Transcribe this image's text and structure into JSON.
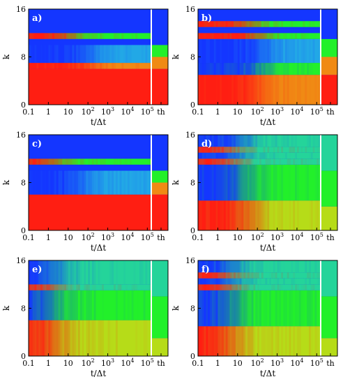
{
  "chart_data": [
    {
      "panel": "a)",
      "type": "heatmap",
      "xlabel": "t/Δt",
      "ylabel": "k",
      "x_tick_labels": [
        {
          "label": "0.1",
          "exp": null,
          "pos": -1
        },
        {
          "label": "1",
          "exp": null,
          "pos": 0
        },
        {
          "label": "10",
          "exp": null,
          "pos": 1
        },
        {
          "label": "10",
          "exp": "2",
          "pos": 2
        },
        {
          "label": "10",
          "exp": "3",
          "pos": 3
        },
        {
          "label": "10",
          "exp": "4",
          "pos": 4
        },
        {
          "label": "10",
          "exp": "5",
          "pos": 5
        },
        {
          "label": "th",
          "exp": null,
          "pos": "th"
        }
      ],
      "y_tick_labels": [
        "0",
        "8",
        "16"
      ],
      "ylim": [
        0,
        16
      ],
      "rows": [
        {
          "k": [
            0,
            6
          ],
          "profile": "red",
          "t_change": 99,
          "to": "red"
        },
        {
          "k": [
            6,
            7
          ],
          "profile": "red",
          "t_change": 2.5,
          "to": "orange"
        },
        {
          "k": [
            7,
            10
          ],
          "profile": "blue",
          "t_change": 2.5,
          "to": "cyan"
        },
        {
          "k": [
            10,
            11
          ],
          "profile": "blue",
          "t_change": 99,
          "to": "blue"
        },
        {
          "k": [
            11,
            12
          ],
          "profile": "red",
          "t_change": 1.5,
          "to": "green"
        },
        {
          "k": [
            12,
            16
          ],
          "profile": "blue",
          "t_change": 99,
          "to": "blue"
        }
      ],
      "equilibrium": [
        {
          "k": [
            0,
            6
          ],
          "color": "red"
        },
        {
          "k": [
            6,
            8
          ],
          "color": "orange"
        },
        {
          "k": [
            8,
            10
          ],
          "color": "green"
        },
        {
          "k": [
            10,
            16
          ],
          "color": "blue"
        }
      ]
    },
    {
      "panel": "b)",
      "type": "heatmap",
      "xlabel": "t/Δt",
      "ylabel": "k",
      "x_tick_labels": [
        {
          "label": "0.1",
          "exp": null,
          "pos": -1
        },
        {
          "label": "1",
          "exp": null,
          "pos": 0
        },
        {
          "label": "10",
          "exp": null,
          "pos": 1
        },
        {
          "label": "10",
          "exp": "2",
          "pos": 2
        },
        {
          "label": "10",
          "exp": "3",
          "pos": 3
        },
        {
          "label": "10",
          "exp": "4",
          "pos": 4
        },
        {
          "label": "10",
          "exp": "5",
          "pos": 5
        },
        {
          "label": "th",
          "exp": null,
          "pos": "th"
        }
      ],
      "y_tick_labels": [
        "0",
        "8",
        "16"
      ],
      "ylim": [
        0,
        16
      ],
      "rows": [
        {
          "k": [
            0,
            5
          ],
          "profile": "red",
          "t_change": 2.5,
          "to": "orange"
        },
        {
          "k": [
            5,
            7
          ],
          "profile": "blue",
          "t_change": 2.5,
          "to": "green"
        },
        {
          "k": [
            7,
            11
          ],
          "profile": "blue",
          "t_change": 2.8,
          "to": "cyan"
        },
        {
          "k": [
            11,
            12
          ],
          "profile": "red",
          "t_change": 2.5,
          "to": "green"
        },
        {
          "k": [
            12,
            13
          ],
          "profile": "blue",
          "t_change": 99,
          "to": "blue"
        },
        {
          "k": [
            13,
            14
          ],
          "profile": "red",
          "t_change": 2.0,
          "to": "green"
        },
        {
          "k": [
            14,
            16
          ],
          "profile": "blue",
          "t_change": 99,
          "to": "blue"
        }
      ],
      "equilibrium": [
        {
          "k": [
            0,
            5
          ],
          "color": "red"
        },
        {
          "k": [
            5,
            8
          ],
          "color": "orange"
        },
        {
          "k": [
            8,
            11
          ],
          "color": "green"
        },
        {
          "k": [
            11,
            16
          ],
          "color": "blue"
        }
      ]
    },
    {
      "panel": "c)",
      "type": "heatmap",
      "xlabel": "t/Δt",
      "ylabel": "k",
      "x_tick_labels": [
        {
          "label": "0.1",
          "exp": null,
          "pos": -1
        },
        {
          "label": "1",
          "exp": null,
          "pos": 0
        },
        {
          "label": "10",
          "exp": null,
          "pos": 1
        },
        {
          "label": "10",
          "exp": "2",
          "pos": 2
        },
        {
          "label": "10",
          "exp": "3",
          "pos": 3
        },
        {
          "label": "10",
          "exp": "4",
          "pos": 4
        },
        {
          "label": "10",
          "exp": "5",
          "pos": 5
        },
        {
          "label": "th",
          "exp": null,
          "pos": "th"
        }
      ],
      "y_tick_labels": [
        "0",
        "8",
        "16"
      ],
      "ylim": [
        0,
        16
      ],
      "rows": [
        {
          "k": [
            0,
            6
          ],
          "profile": "red",
          "t_change": 99,
          "to": "red"
        },
        {
          "k": [
            6,
            10
          ],
          "profile": "blue",
          "t_change": 2.0,
          "to": "cyan"
        },
        {
          "k": [
            10,
            11
          ],
          "profile": "blue",
          "t_change": 99,
          "to": "blue"
        },
        {
          "k": [
            11,
            12
          ],
          "profile": "red",
          "t_change": 0.6,
          "to": "green"
        },
        {
          "k": [
            12,
            16
          ],
          "profile": "blue",
          "t_change": 99,
          "to": "blue"
        }
      ],
      "equilibrium": [
        {
          "k": [
            0,
            6
          ],
          "color": "red"
        },
        {
          "k": [
            6,
            8
          ],
          "color": "orange"
        },
        {
          "k": [
            8,
            10
          ],
          "color": "green"
        },
        {
          "k": [
            10,
            16
          ],
          "color": "blue"
        }
      ]
    },
    {
      "panel": "d)",
      "type": "heatmap",
      "xlabel": "t/Δt",
      "ylabel": "k",
      "x_tick_labels": [
        {
          "label": "0.1",
          "exp": null,
          "pos": -1
        },
        {
          "label": "1",
          "exp": null,
          "pos": 0
        },
        {
          "label": "10",
          "exp": null,
          "pos": 1
        },
        {
          "label": "10",
          "exp": "2",
          "pos": 2
        },
        {
          "label": "10",
          "exp": "3",
          "pos": 3
        },
        {
          "label": "10",
          "exp": "4",
          "pos": 4
        },
        {
          "label": "10",
          "exp": "5",
          "pos": 5
        },
        {
          "label": "th",
          "exp": null,
          "pos": "th"
        }
      ],
      "y_tick_labels": [
        "0",
        "8",
        "16"
      ],
      "ylim": [
        0,
        16
      ],
      "rows": [
        {
          "k": [
            0,
            5
          ],
          "profile": "red",
          "t_change": 2.0,
          "to": "yellow"
        },
        {
          "k": [
            5,
            11
          ],
          "profile": "blue",
          "t_change": 1.6,
          "to": "green"
        },
        {
          "k": [
            11,
            12
          ],
          "profile": "red",
          "t_change": 1.0,
          "to": "teal"
        },
        {
          "k": [
            12,
            13
          ],
          "profile": "blue",
          "t_change": 1.3,
          "to": "teal"
        },
        {
          "k": [
            13,
            14
          ],
          "profile": "red",
          "t_change": 1.0,
          "to": "teal"
        },
        {
          "k": [
            14,
            16
          ],
          "profile": "blue",
          "t_change": 1.6,
          "to": "teal"
        }
      ],
      "equilibrium": [
        {
          "k": [
            0,
            4
          ],
          "color": "yellow"
        },
        {
          "k": [
            4,
            10
          ],
          "color": "green"
        },
        {
          "k": [
            10,
            16
          ],
          "color": "teal"
        }
      ]
    },
    {
      "panel": "e)",
      "type": "heatmap",
      "xlabel": "t/Δt",
      "ylabel": "k",
      "x_tick_labels": [
        {
          "label": "0.1",
          "exp": null,
          "pos": -1
        },
        {
          "label": "1",
          "exp": null,
          "pos": 0
        },
        {
          "label": "10",
          "exp": null,
          "pos": 1
        },
        {
          "label": "10",
          "exp": "2",
          "pos": 2
        },
        {
          "label": "10",
          "exp": "3",
          "pos": 3
        },
        {
          "label": "10",
          "exp": "4",
          "pos": 4
        },
        {
          "label": "10",
          "exp": "5",
          "pos": 5
        },
        {
          "label": "th",
          "exp": null,
          "pos": "th"
        }
      ],
      "y_tick_labels": [
        "0",
        "8",
        "16"
      ],
      "ylim": [
        0,
        16
      ],
      "rows": [
        {
          "k": [
            0,
            6
          ],
          "profile": "red",
          "t_change": 0.6,
          "to": "yellow"
        },
        {
          "k": [
            6,
            11
          ],
          "profile": "blue",
          "t_change": 0.3,
          "to": "green"
        },
        {
          "k": [
            11,
            12
          ],
          "profile": "red",
          "t_change": 0.4,
          "to": "teal"
        },
        {
          "k": [
            12,
            16
          ],
          "profile": "blue",
          "t_change": 0.6,
          "to": "teal"
        }
      ],
      "equilibrium": [
        {
          "k": [
            0,
            3
          ],
          "color": "yellow"
        },
        {
          "k": [
            3,
            10
          ],
          "color": "green"
        },
        {
          "k": [
            10,
            16
          ],
          "color": "teal"
        }
      ]
    },
    {
      "panel": "f)",
      "type": "heatmap",
      "xlabel": "t/Δt",
      "ylabel": "k",
      "x_tick_labels": [
        {
          "label": "0.1",
          "exp": null,
          "pos": -1
        },
        {
          "label": "1",
          "exp": null,
          "pos": 0
        },
        {
          "label": "10",
          "exp": null,
          "pos": 1
        },
        {
          "label": "10",
          "exp": "2",
          "pos": 2
        },
        {
          "label": "10",
          "exp": "3",
          "pos": 3
        },
        {
          "label": "10",
          "exp": "4",
          "pos": 4
        },
        {
          "label": "10",
          "exp": "5",
          "pos": 5
        },
        {
          "label": "th",
          "exp": null,
          "pos": "th"
        }
      ],
      "y_tick_labels": [
        "0",
        "8",
        "16"
      ],
      "ylim": [
        0,
        16
      ],
      "rows": [
        {
          "k": [
            0,
            5
          ],
          "profile": "red",
          "t_change": 1.0,
          "to": "yellow"
        },
        {
          "k": [
            5,
            11
          ],
          "profile": "blue",
          "t_change": 1.0,
          "to": "green"
        },
        {
          "k": [
            11,
            12
          ],
          "profile": "red",
          "t_change": 0.9,
          "to": "teal"
        },
        {
          "k": [
            12,
            13
          ],
          "profile": "blue",
          "t_change": 1.0,
          "to": "teal"
        },
        {
          "k": [
            13,
            14
          ],
          "profile": "red",
          "t_change": 0.9,
          "to": "teal"
        },
        {
          "k": [
            14,
            16
          ],
          "profile": "blue",
          "t_change": 1.0,
          "to": "teal"
        }
      ],
      "equilibrium": [
        {
          "k": [
            0,
            3
          ],
          "color": "yellow"
        },
        {
          "k": [
            3,
            10
          ],
          "color": "green"
        },
        {
          "k": [
            10,
            16
          ],
          "color": "teal"
        }
      ]
    }
  ],
  "palette": {
    "red": "#ff1e12",
    "orange": "#f08a14",
    "yellow": "#b6dc18",
    "green": "#22f02a",
    "teal": "#24d49a",
    "cyan": "#22a8e6",
    "blue": "#1436ff"
  }
}
